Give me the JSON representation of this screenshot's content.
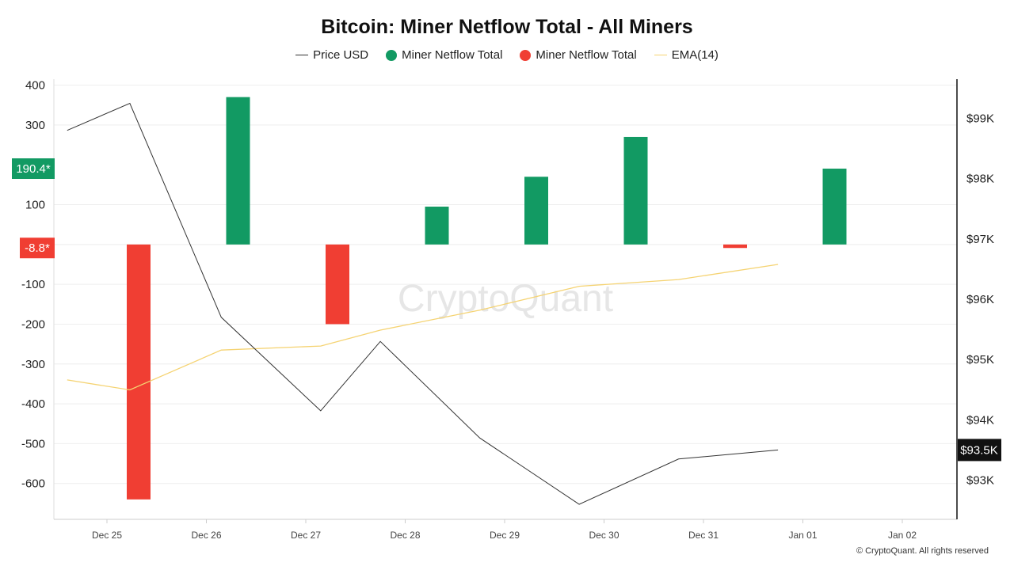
{
  "chart_data": {
    "type": "bar",
    "title": "Bitcoin: Miner Netflow Total - All Miners",
    "legend": [
      {
        "name": "Price USD",
        "kind": "line",
        "color": "#333333"
      },
      {
        "name": "Miner Netflow Total",
        "kind": "dot",
        "color": "#129a63"
      },
      {
        "name": "Miner Netflow Total",
        "kind": "dot",
        "color": "#f03e33"
      },
      {
        "name": "EMA(14)",
        "kind": "line",
        "color": "#f5d372"
      }
    ],
    "legend_position": "top-center",
    "x_ticks": [
      "Dec 25",
      "Dec 26",
      "Dec 27",
      "Dec 28",
      "Dec 29",
      "Dec 30",
      "Dec 31",
      "Jan 01",
      "Jan 02"
    ],
    "dates": [
      "Dec 25",
      "Dec 26",
      "Dec 27",
      "Dec 28",
      "Dec 29",
      "Dec 30",
      "Dec 31",
      "Jan 01"
    ],
    "left_axis": {
      "ticks": [
        "400",
        "300",
        "100",
        "-100",
        "-200",
        "-300",
        "-400",
        "-500",
        "-600"
      ],
      "tick_values": [
        400,
        300,
        100,
        -100,
        -200,
        -300,
        -400,
        -500,
        -600
      ],
      "range": [
        -690,
        415
      ]
    },
    "right_axis": {
      "ticks": [
        "$99K",
        "$98K",
        "$97K",
        "$96K",
        "$95K",
        "$94K",
        "$93K"
      ],
      "tick_values": [
        99000,
        98000,
        97000,
        96000,
        95000,
        94000,
        93000
      ],
      "range": [
        92350,
        99650
      ]
    },
    "netflow": [
      -640,
      370,
      -200,
      95,
      170,
      270,
      -8.8,
      190.4
    ],
    "price_usd": [
      98800,
      99250,
      95700,
      94150,
      95300,
      93700,
      92600,
      93350,
      93500
    ],
    "price_x": [
      -0.4,
      0.23,
      1.15,
      2.15,
      2.75,
      3.75,
      4.75,
      5.75,
      6.75
    ],
    "ema14": [
      -340,
      -365,
      -265,
      -255,
      -215,
      -165,
      -105,
      -88,
      -50
    ],
    "ema_x": [
      -0.4,
      0.23,
      1.15,
      2.15,
      2.75,
      3.75,
      4.75,
      5.75,
      6.75
    ],
    "markers": {
      "netflow_positive_last": "190.4*",
      "netflow_negative_last": "-8.8*",
      "price_last": "$93.5K"
    },
    "colors": {
      "positive": "#129a63",
      "negative": "#f03e33",
      "price": "#333333",
      "ema": "#f5d372",
      "grid": "#eeeeee",
      "badge_price": "#111111"
    },
    "grid": true,
    "watermark": "CryptoQuant"
  },
  "footer": {
    "credit": "© CryptoQuant. All rights reserved"
  }
}
